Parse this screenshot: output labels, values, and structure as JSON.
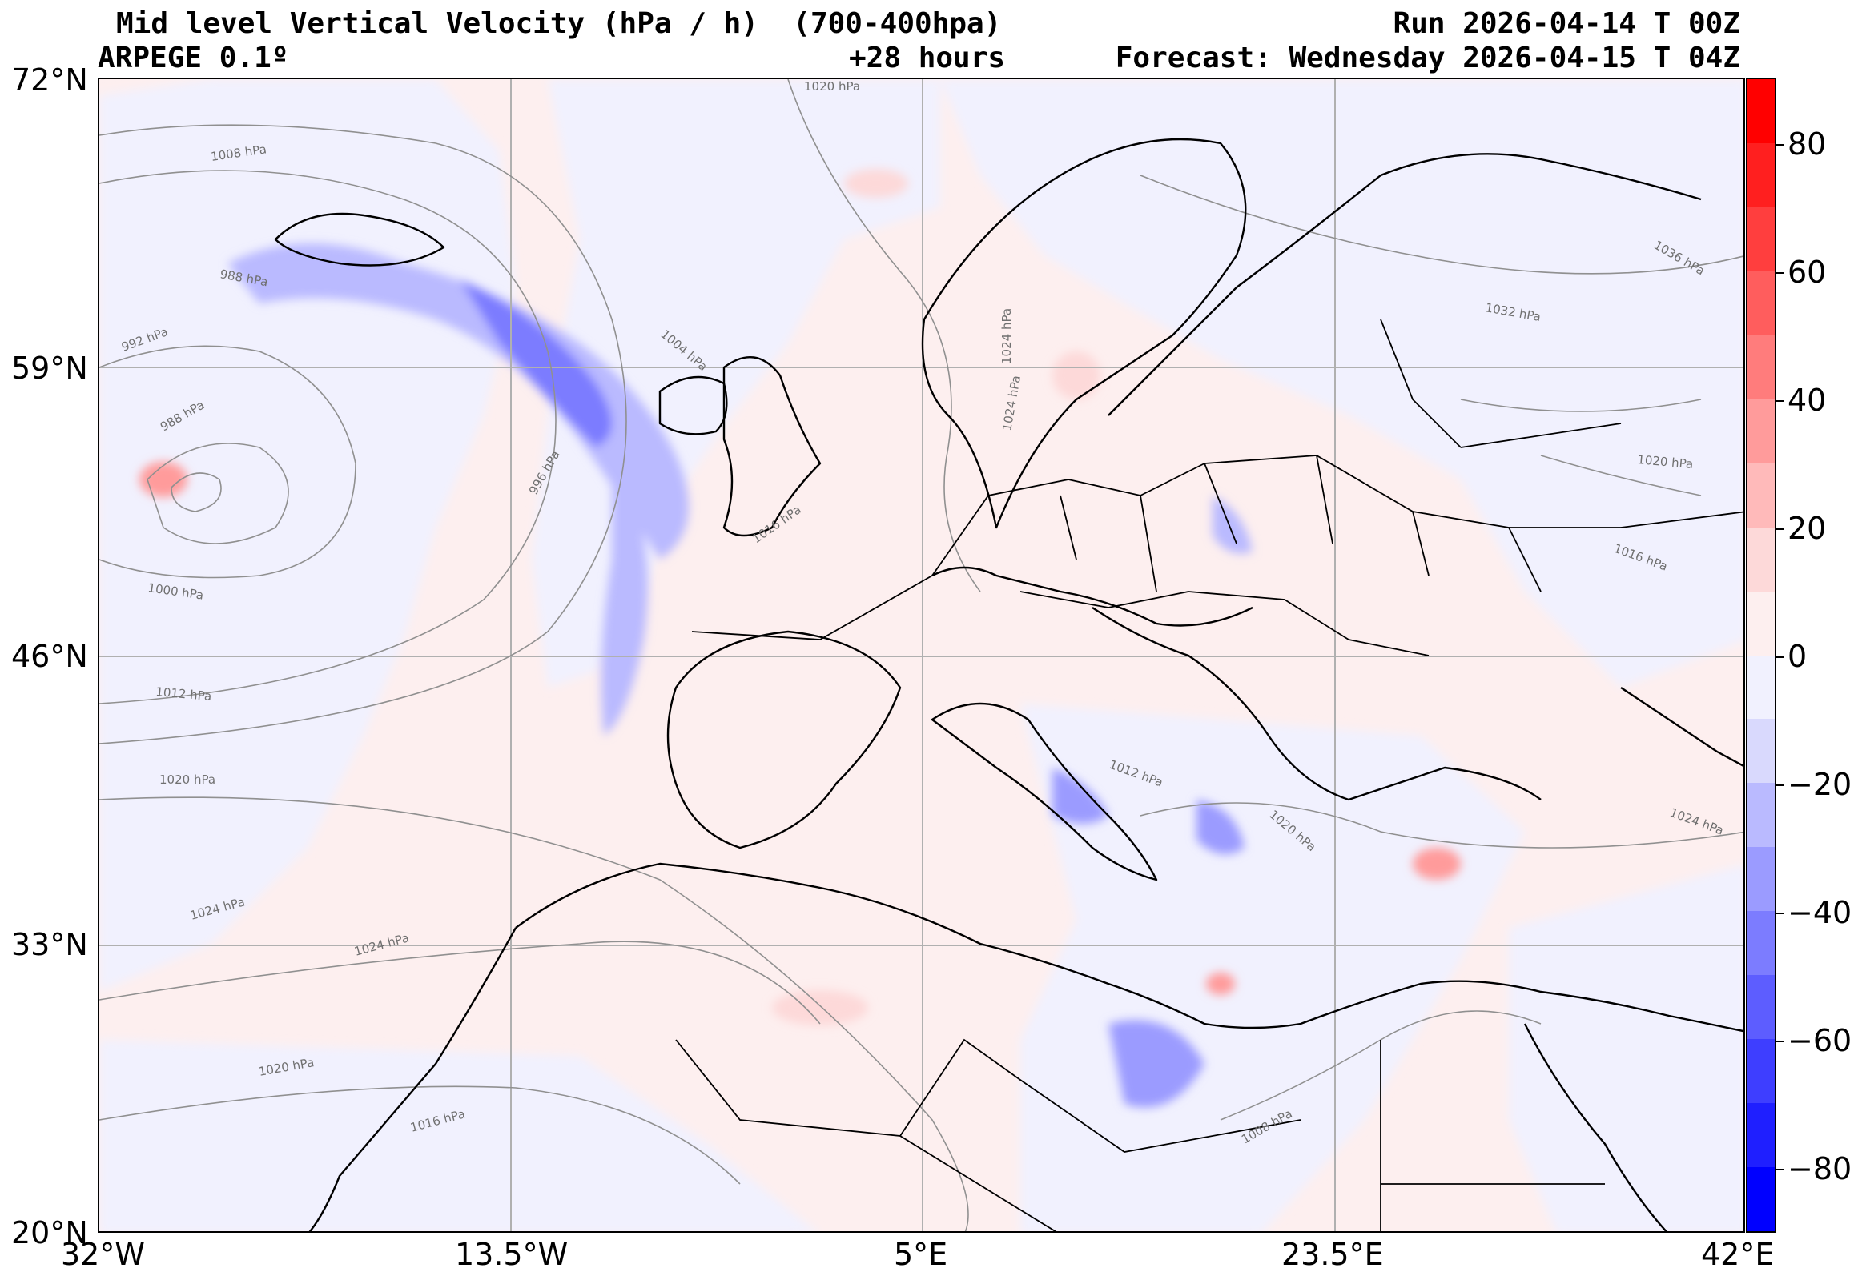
{
  "header": {
    "title_line1": "Mid level Vertical Velocity (hPa / h)  (700-400hpa)",
    "model": "ARPEGE 0.1º",
    "lead": "+28 hours",
    "run": "Run 2026-04-14 T 00Z",
    "forecast": "Forecast: Wednesday 2026-04-15 T 04Z"
  },
  "axes": {
    "lat_labels": [
      "72°N",
      "59°N",
      "46°N",
      "33°N",
      "20°N"
    ],
    "lon_labels": [
      "32°W",
      "13.5°W",
      "5°E",
      "23.5°E",
      "42°E"
    ]
  },
  "colorbar": {
    "labels": [
      "80",
      "60",
      "40",
      "20",
      "0",
      "−20",
      "−40",
      "−60",
      "−80"
    ],
    "levels": [
      -90,
      -80,
      -70,
      -60,
      -50,
      -40,
      -30,
      -20,
      -10,
      0,
      10,
      20,
      30,
      40,
      50,
      60,
      70,
      80,
      90
    ],
    "colors": {
      "neg": [
        "#0000ff",
        "#1f1fff",
        "#3e3eff",
        "#5d5dff",
        "#7c7cff",
        "#9b9bff",
        "#babaff",
        "#d9d9fd",
        "#f1f1fe"
      ],
      "pos": [
        "#fdefef",
        "#fdd9d9",
        "#ffbaba",
        "#ff9b9b",
        "#ff7c7c",
        "#ff5d5d",
        "#ff3e3e",
        "#ff1f1f",
        "#ff0000"
      ]
    }
  },
  "isobar_labels": [
    "1020 hPa",
    "1008 hPa",
    "988 hPa",
    "992 hPa",
    "988 hPa",
    "1004 hPa",
    "996 hPa",
    "1000 hPa",
    "1012 hPa",
    "1020 hPa",
    "1024 hPa",
    "1024 hPa",
    "1020 hPa",
    "1016 hPa",
    "1016 hPa",
    "1024 hPa",
    "1024 hPa",
    "1032 hPa",
    "1036 hPa",
    "1020 hPa",
    "1016 hPa",
    "1012 hPa",
    "1020 hPa",
    "1024 hPa",
    "1008 hPa"
  ]
}
